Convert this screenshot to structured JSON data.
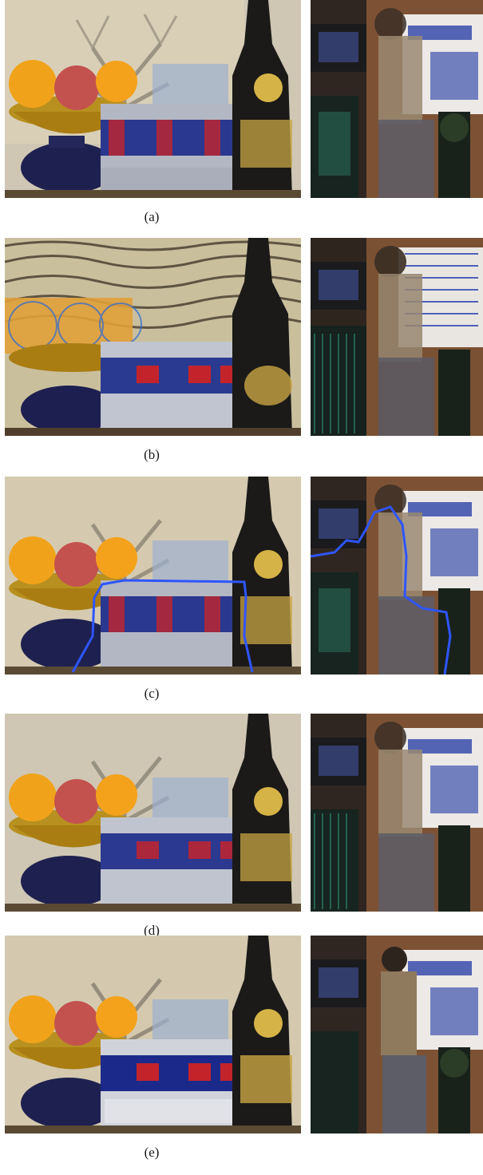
{
  "figure": {
    "rows": [
      {
        "id": "a",
        "caption": "(a)",
        "style": "blur-scene"
      },
      {
        "id": "b",
        "caption": "(b)",
        "style": "ringing"
      },
      {
        "id": "c",
        "caption": "(c)",
        "style": "segmented"
      },
      {
        "id": "d",
        "caption": "(d)",
        "style": "partial-deblur"
      },
      {
        "id": "e",
        "caption": "(e)",
        "style": "sharp"
      }
    ]
  },
  "colors": {
    "background": "#ffffff",
    "boundary_line": "#2f55ff",
    "can_blue": "#1b2a8a",
    "can_red": "#c3242b",
    "orange": "#f4a21b",
    "bottle": "#1b1a18",
    "label_gold": "#d6b347"
  }
}
